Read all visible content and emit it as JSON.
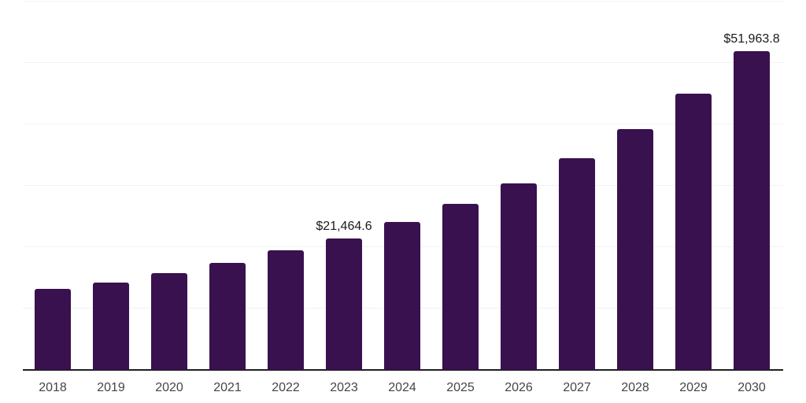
{
  "chart_data": {
    "type": "bar",
    "title": "",
    "xlabel": "",
    "ylabel": "",
    "categories": [
      "2018",
      "2019",
      "2020",
      "2021",
      "2022",
      "2023",
      "2024",
      "2025",
      "2026",
      "2027",
      "2028",
      "2029",
      "2030"
    ],
    "values": [
      13200,
      14300,
      15800,
      17500,
      19450,
      21464.6,
      24050,
      27000,
      30350,
      34500,
      39300,
      45000,
      51963.8
    ],
    "value_labels": {
      "2023": "$21,464.6",
      "2030": "$51,963.8"
    },
    "ylim": [
      0,
      60000
    ],
    "gridline_interval": 10000,
    "grid": "horizontal-only",
    "legend": "none",
    "y_axis_tick_labels": "none",
    "bar_color": "#38114E",
    "gridline_color": "#f2f2f2",
    "axis_line_color": "#1f1f1f",
    "tick_label_color": "#454545",
    "data_label_color": "#1a1a1a"
  }
}
